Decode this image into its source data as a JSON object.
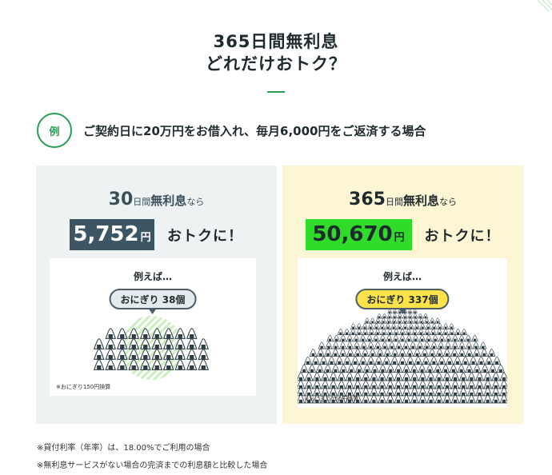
{
  "header": {
    "title_line1": "365日間無利息",
    "title_line2": "どれだけおトク？"
  },
  "example": {
    "badge": "例",
    "text": "ご契約日に20万円をお借入れ、毎月6,000円をご返済する場合"
  },
  "left_panel": {
    "days": "30",
    "days_label": "日間",
    "free_label": "無利息",
    "nara": "なら",
    "amount": "5,752",
    "unit": "円",
    "suffix": "おトクに！",
    "for_example": "例えば…",
    "pill": "おにぎり 38個",
    "count": 38,
    "note": "※おにぎり150円換算"
  },
  "right_panel": {
    "days": "365",
    "days_label": "日間",
    "free_label": "無利息",
    "nara": "なら",
    "amount": "50,670",
    "unit": "円",
    "suffix": "おトクに！",
    "for_example": "例えば…",
    "pill": "おにぎり 337個",
    "count": 337,
    "note": "※おにぎり150円換算"
  },
  "footnotes": [
    "※貸付利率（年率）は、18.00%でご利用の場合",
    "※無利息サービスがない場合の完済までの利息額と比較した場合"
  ],
  "colors": {
    "accent_green": "#2a9d57",
    "left_amount_bg": "#3e5663",
    "right_amount_bg": "#2fdc2a",
    "left_panel_bg": "#eef2f3",
    "right_panel_bg": "#fdf6d4",
    "pill_yellow": "#fde24a"
  },
  "icons": {
    "rice_ball": "onigiri-icon"
  }
}
